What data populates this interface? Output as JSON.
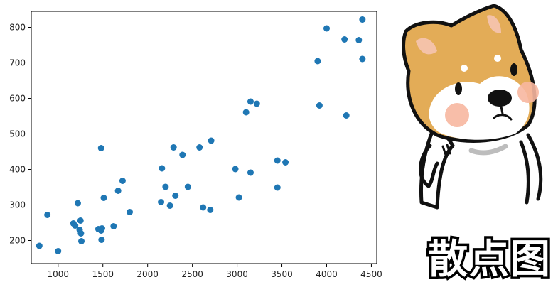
{
  "chart_data": {
    "type": "scatter",
    "title": "",
    "xlabel": "",
    "ylabel": "",
    "xlim": [
      700,
      4560
    ],
    "ylim": [
      135,
      845
    ],
    "xticks": [
      1000,
      1500,
      2000,
      2500,
      3000,
      3500,
      4000,
      4500
    ],
    "yticks": [
      200,
      300,
      400,
      500,
      600,
      700,
      800
    ],
    "grid": false,
    "legend": "none",
    "marker_color": "#1f77b4",
    "points": [
      {
        "x": 790,
        "y": 185
      },
      {
        "x": 880,
        "y": 272
      },
      {
        "x": 1000,
        "y": 170
      },
      {
        "x": 1170,
        "y": 248
      },
      {
        "x": 1190,
        "y": 242
      },
      {
        "x": 1220,
        "y": 305
      },
      {
        "x": 1240,
        "y": 230
      },
      {
        "x": 1250,
        "y": 256
      },
      {
        "x": 1255,
        "y": 220
      },
      {
        "x": 1260,
        "y": 198
      },
      {
        "x": 1450,
        "y": 232
      },
      {
        "x": 1480,
        "y": 228
      },
      {
        "x": 1480,
        "y": 460
      },
      {
        "x": 1485,
        "y": 202
      },
      {
        "x": 1490,
        "y": 234
      },
      {
        "x": 1510,
        "y": 320
      },
      {
        "x": 1620,
        "y": 240
      },
      {
        "x": 1670,
        "y": 340
      },
      {
        "x": 1720,
        "y": 368
      },
      {
        "x": 1800,
        "y": 280
      },
      {
        "x": 2150,
        "y": 308
      },
      {
        "x": 2160,
        "y": 403
      },
      {
        "x": 2200,
        "y": 351
      },
      {
        "x": 2250,
        "y": 298
      },
      {
        "x": 2290,
        "y": 462
      },
      {
        "x": 2310,
        "y": 326
      },
      {
        "x": 2390,
        "y": 441
      },
      {
        "x": 2450,
        "y": 351
      },
      {
        "x": 2580,
        "y": 462
      },
      {
        "x": 2620,
        "y": 293
      },
      {
        "x": 2700,
        "y": 286
      },
      {
        "x": 2710,
        "y": 481
      },
      {
        "x": 2980,
        "y": 401
      },
      {
        "x": 3020,
        "y": 321
      },
      {
        "x": 3100,
        "y": 561
      },
      {
        "x": 3150,
        "y": 591
      },
      {
        "x": 3150,
        "y": 391
      },
      {
        "x": 3220,
        "y": 585
      },
      {
        "x": 3450,
        "y": 425
      },
      {
        "x": 3450,
        "y": 349
      },
      {
        "x": 3540,
        "y": 420
      },
      {
        "x": 3900,
        "y": 705
      },
      {
        "x": 3920,
        "y": 580
      },
      {
        "x": 4000,
        "y": 797
      },
      {
        "x": 4200,
        "y": 766
      },
      {
        "x": 4220,
        "y": 552
      },
      {
        "x": 4360,
        "y": 764
      },
      {
        "x": 4400,
        "y": 822
      },
      {
        "x": 4400,
        "y": 711
      }
    ]
  },
  "sticker": {
    "icon": "shiba-dog-icon",
    "caption": "散点图"
  }
}
